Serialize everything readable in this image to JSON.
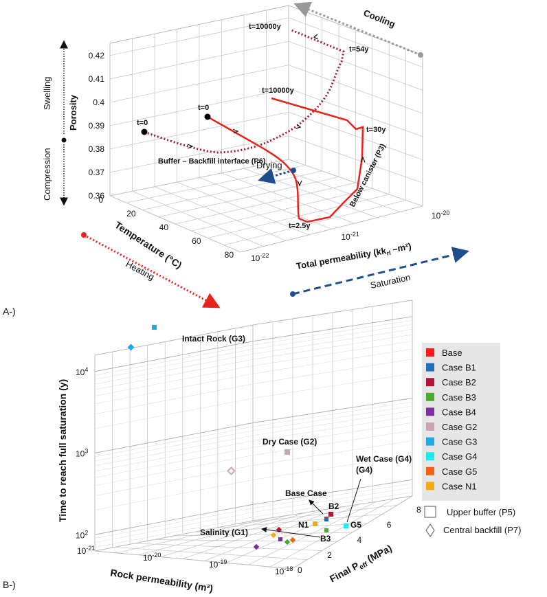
{
  "chart_data": [
    {
      "panel_label": "A-)",
      "type": "line",
      "projection": "3d",
      "axes": {
        "temperature": {
          "label": "Temperature (°C)",
          "ticks": [
            "0",
            "20",
            "40",
            "60",
            "80"
          ],
          "range": [
            0,
            80
          ]
        },
        "permeability": {
          "label_main": "Total permeability (kk",
          "label_sub": "rl",
          "label_end": " –m²)",
          "ticks": [
            {
              "base": "10",
              "exp": "-22"
            },
            {
              "base": "10",
              "exp": "-21"
            },
            {
              "base": "10",
              "exp": "-20"
            }
          ],
          "range_log10": [
            -22,
            -20
          ]
        },
        "porosity": {
          "label": "Porosity",
          "ticks": [
            "0.36",
            "0.37",
            "0.38",
            "0.39",
            "0.4",
            "0.41",
            "0.42"
          ],
          "range": [
            0.36,
            0.42
          ]
        }
      },
      "annotations": {
        "swelling": "Swelling",
        "compression": "Compression",
        "cooling": "Cooling",
        "heating": "Heating",
        "saturation": "Saturation",
        "drying": "Drying"
      },
      "series": [
        {
          "name": "Buffer – Backfill interface (P6)",
          "style": "dotted",
          "color": "#9a1b2d",
          "labels": [
            "t=0",
            "t=54y",
            "t=10000y"
          ]
        },
        {
          "name": "Below canister (P3)",
          "style": "solid",
          "color": "#e8231c",
          "labels": [
            "t=0",
            "t=2.5y",
            "t=30y",
            "t=10000y"
          ]
        }
      ]
    },
    {
      "panel_label": "B-)",
      "type": "scatter",
      "projection": "3d",
      "axes": {
        "rock_permeability": {
          "label": "Rock permeability (m²)",
          "ticks": [
            {
              "base": "10",
              "exp": "-21"
            },
            {
              "base": "10",
              "exp": "-20"
            },
            {
              "base": "10",
              "exp": "-19"
            },
            {
              "base": "10",
              "exp": "-18"
            }
          ]
        },
        "final_peff": {
          "label_main": "Final P",
          "label_sub": "eff",
          "label_end": " (MPa)",
          "ticks": [
            "0",
            "2",
            "4",
            "6",
            "8"
          ],
          "range": [
            0,
            8
          ]
        },
        "time": {
          "label": "Time to reach full saturation (y)",
          "ticks": [
            {
              "base": "10",
              "exp": "2"
            },
            {
              "base": "10",
              "exp": "3"
            },
            {
              "base": "10",
              "exp": "4"
            }
          ],
          "range_log10": [
            1.8,
            4.2
          ]
        }
      },
      "legend": [
        {
          "name": "Base",
          "color": "#ff1a1a"
        },
        {
          "name": "Case B1",
          "color": "#1f6fb5"
        },
        {
          "name": "Case B2",
          "color": "#b0163a"
        },
        {
          "name": "Case B3",
          "color": "#4aab2e"
        },
        {
          "name": "Case B4",
          "color": "#7b2fa3"
        },
        {
          "name": "Case G2",
          "color": "#c9a6ae"
        },
        {
          "name": "Case G3",
          "color": "#1eaae8"
        },
        {
          "name": "Case G4",
          "color": "#1ee8ec"
        },
        {
          "name": "Case G5",
          "color": "#f0621a"
        },
        {
          "name": "Case N1",
          "color": "#f5a918"
        }
      ],
      "marker_legend": [
        {
          "name": "Upper buffer (P5)",
          "marker": "square"
        },
        {
          "name": "Central backfill (P7)",
          "marker": "diamond"
        }
      ],
      "callouts": [
        "Intact Rock (G3)",
        "Dry Case (G2)",
        "Wet Case (G4)",
        "Base Case",
        "B2",
        "N1",
        "G5",
        "B3",
        "Salinity (G1)"
      ]
    }
  ]
}
